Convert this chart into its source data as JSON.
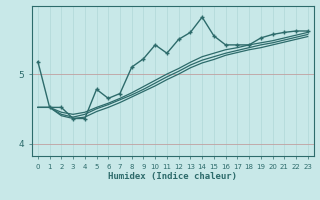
{
  "xlabel": "Humidex (Indice chaleur)",
  "bg_color": "#c8e8e8",
  "line_color": "#2d6b6b",
  "grid_color_v": "#b0d8d8",
  "grid_color_h": "#c0a0a0",
  "x_ticks": [
    0,
    1,
    2,
    3,
    4,
    5,
    6,
    7,
    8,
    9,
    10,
    11,
    12,
    13,
    14,
    15,
    16,
    17,
    18,
    19,
    20,
    21,
    22,
    23
  ],
  "y_ticks": [
    4,
    5
  ],
  "ylim": [
    3.82,
    5.98
  ],
  "xlim": [
    -0.5,
    23.5
  ],
  "line1_x": [
    0,
    1,
    2,
    3,
    4,
    5,
    6,
    7,
    8,
    9,
    10,
    11,
    12,
    13,
    14,
    15,
    16,
    17,
    18,
    19,
    20,
    21,
    22,
    23
  ],
  "line1_y": [
    4.52,
    4.52,
    4.45,
    4.42,
    4.45,
    4.52,
    4.58,
    4.65,
    4.73,
    4.82,
    4.91,
    5.0,
    5.08,
    5.17,
    5.25,
    5.3,
    5.35,
    5.38,
    5.42,
    5.45,
    5.48,
    5.52,
    5.56,
    5.6
  ],
  "line2_x": [
    0,
    1,
    2,
    3,
    4,
    5,
    6,
    7,
    8,
    9,
    10,
    11,
    12,
    13,
    14,
    15,
    16,
    17,
    18,
    19,
    20,
    21,
    22,
    23
  ],
  "line2_y": [
    4.52,
    4.52,
    4.42,
    4.38,
    4.42,
    4.5,
    4.56,
    4.63,
    4.7,
    4.78,
    4.87,
    4.96,
    5.04,
    5.13,
    5.2,
    5.25,
    5.3,
    5.34,
    5.38,
    5.42,
    5.45,
    5.49,
    5.53,
    5.57
  ],
  "line3_x": [
    0,
    1,
    2,
    3,
    4,
    5,
    6,
    7,
    8,
    9,
    10,
    11,
    12,
    13,
    14,
    15,
    16,
    17,
    18,
    19,
    20,
    21,
    22,
    23
  ],
  "line3_y": [
    4.52,
    4.52,
    4.4,
    4.36,
    4.38,
    4.46,
    4.52,
    4.59,
    4.67,
    4.75,
    4.83,
    4.92,
    5.0,
    5.09,
    5.16,
    5.21,
    5.27,
    5.31,
    5.35,
    5.38,
    5.42,
    5.46,
    5.5,
    5.54
  ],
  "main_x": [
    0,
    1,
    2,
    3,
    4,
    5,
    6,
    7,
    8,
    9,
    10,
    11,
    12,
    13,
    14,
    15,
    16,
    17,
    18,
    19,
    20,
    21,
    22,
    23
  ],
  "main_y": [
    5.18,
    4.52,
    4.52,
    4.36,
    4.36,
    4.78,
    4.65,
    4.72,
    5.1,
    5.22,
    5.42,
    5.3,
    5.5,
    5.6,
    5.82,
    5.55,
    5.42,
    5.42,
    5.42,
    5.52,
    5.57,
    5.6,
    5.62,
    5.62
  ]
}
